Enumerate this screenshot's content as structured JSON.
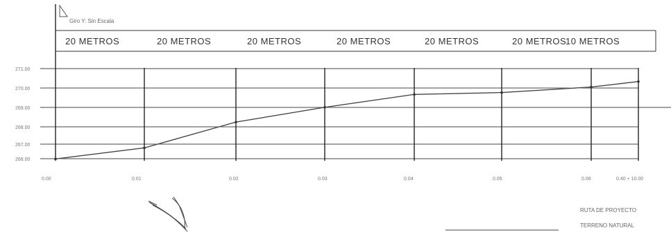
{
  "header": {
    "note": "Giro Y: Sin Escala"
  },
  "segments": [
    {
      "label": "20 METROS"
    },
    {
      "label": "20 METROS"
    },
    {
      "label": "20 METROS"
    },
    {
      "label": "20 METROS"
    },
    {
      "label": "20 METROS"
    },
    {
      "label": "20 METROS"
    },
    {
      "label": "10 METROS"
    }
  ],
  "elevations": [
    "271.00",
    "270.00",
    "269.00",
    "268.00",
    "267.00",
    "266.00"
  ],
  "stations": [
    "0.00",
    "0.01",
    "0.02",
    "0.03",
    "0.04",
    "0.05",
    "0.06",
    "0.40 + 10.00"
  ],
  "legend": {
    "project_line": "RUTA DE PROYECTO",
    "natural_ground": "TERRENO NATURAL"
  },
  "chart_data": {
    "type": "line",
    "ylim": [
      266,
      271
    ],
    "x": [
      0,
      20,
      40,
      60,
      80,
      100,
      120,
      130
    ],
    "series": [
      {
        "values": [
          266.1,
          266.7,
          268.1,
          268.9,
          269.6,
          269.7,
          270.0,
          270.3
        ]
      },
      {
        "values": [
          266.1,
          266.7,
          268.1,
          268.9,
          269.6,
          269.7,
          270.0,
          270.3
        ]
      }
    ]
  }
}
